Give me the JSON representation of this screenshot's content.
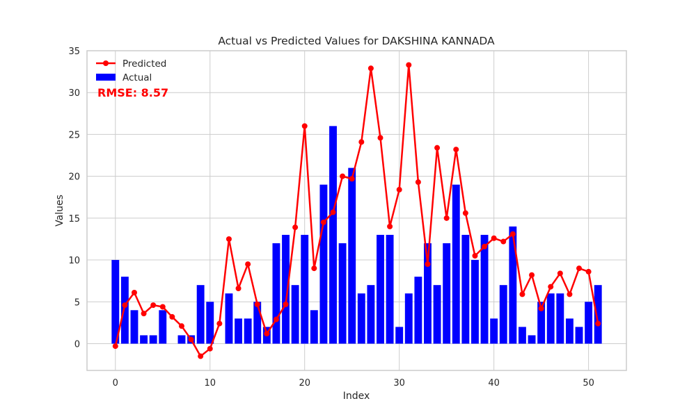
{
  "chart_data": {
    "type": "bar",
    "title": "Actual vs Predicted Values for DAKSHINA KANNADA",
    "xlabel": "Index",
    "ylabel": "Values",
    "xlim": [
      -3,
      54
    ],
    "ylim": [
      -3.2,
      35
    ],
    "xticks": [
      0,
      10,
      20,
      30,
      40,
      50
    ],
    "yticks": [
      0,
      5,
      10,
      15,
      20,
      25,
      30,
      35
    ],
    "grid": true,
    "legend_position": "top-left",
    "annotation": "RMSE: 8.57",
    "colors": {
      "actual": "#0000ff",
      "predicted": "#ff0000",
      "annotation": "#ff0000",
      "grid": "#cccccc"
    },
    "series": [
      {
        "name": "Actual",
        "kind": "bar",
        "x": [
          0,
          1,
          2,
          3,
          4,
          5,
          6,
          7,
          8,
          9,
          10,
          11,
          12,
          13,
          14,
          15,
          16,
          17,
          18,
          19,
          20,
          21,
          22,
          23,
          24,
          25,
          26,
          27,
          28,
          29,
          30,
          31,
          32,
          33,
          34,
          35,
          36,
          37,
          38,
          39,
          40,
          41,
          42,
          43,
          44,
          45,
          46,
          47,
          48,
          49,
          50,
          51
        ],
        "values": [
          10,
          8,
          4,
          1,
          1,
          4,
          0,
          1,
          1,
          7,
          5,
          0,
          6,
          3,
          3,
          5,
          2,
          12,
          13,
          7,
          13,
          4,
          19,
          26,
          12,
          21,
          6,
          7,
          13,
          13,
          2,
          6,
          8,
          12,
          7,
          12,
          19,
          13,
          10,
          13,
          3,
          7,
          14,
          2,
          1,
          5,
          6,
          6,
          3,
          2,
          5,
          7
        ]
      },
      {
        "name": "Predicted",
        "kind": "line",
        "x": [
          0,
          1,
          2,
          3,
          4,
          5,
          6,
          7,
          8,
          9,
          10,
          11,
          12,
          13,
          14,
          15,
          16,
          17,
          18,
          19,
          20,
          21,
          22,
          23,
          24,
          25,
          26,
          27,
          28,
          29,
          30,
          31,
          32,
          33,
          34,
          35,
          36,
          37,
          38,
          39,
          40,
          41,
          42,
          43,
          44,
          45,
          46,
          47,
          48,
          49,
          50,
          51
        ],
        "values": [
          -0.3,
          4.6,
          6.1,
          3.6,
          4.6,
          4.4,
          3.2,
          2.1,
          0.5,
          -1.5,
          -0.6,
          2.4,
          12.5,
          6.6,
          9.5,
          4.7,
          1.2,
          2.9,
          4.7,
          13.9,
          26.0,
          9.0,
          14.5,
          15.7,
          20.0,
          19.7,
          24.1,
          32.9,
          24.6,
          14.0,
          18.4,
          33.3,
          19.3,
          9.5,
          23.4,
          15.0,
          23.2,
          15.6,
          10.5,
          11.6,
          12.6,
          12.2,
          13.1,
          5.9,
          8.2,
          4.2,
          6.8,
          8.4,
          5.9,
          9.0,
          8.6,
          2.4
        ]
      }
    ]
  }
}
